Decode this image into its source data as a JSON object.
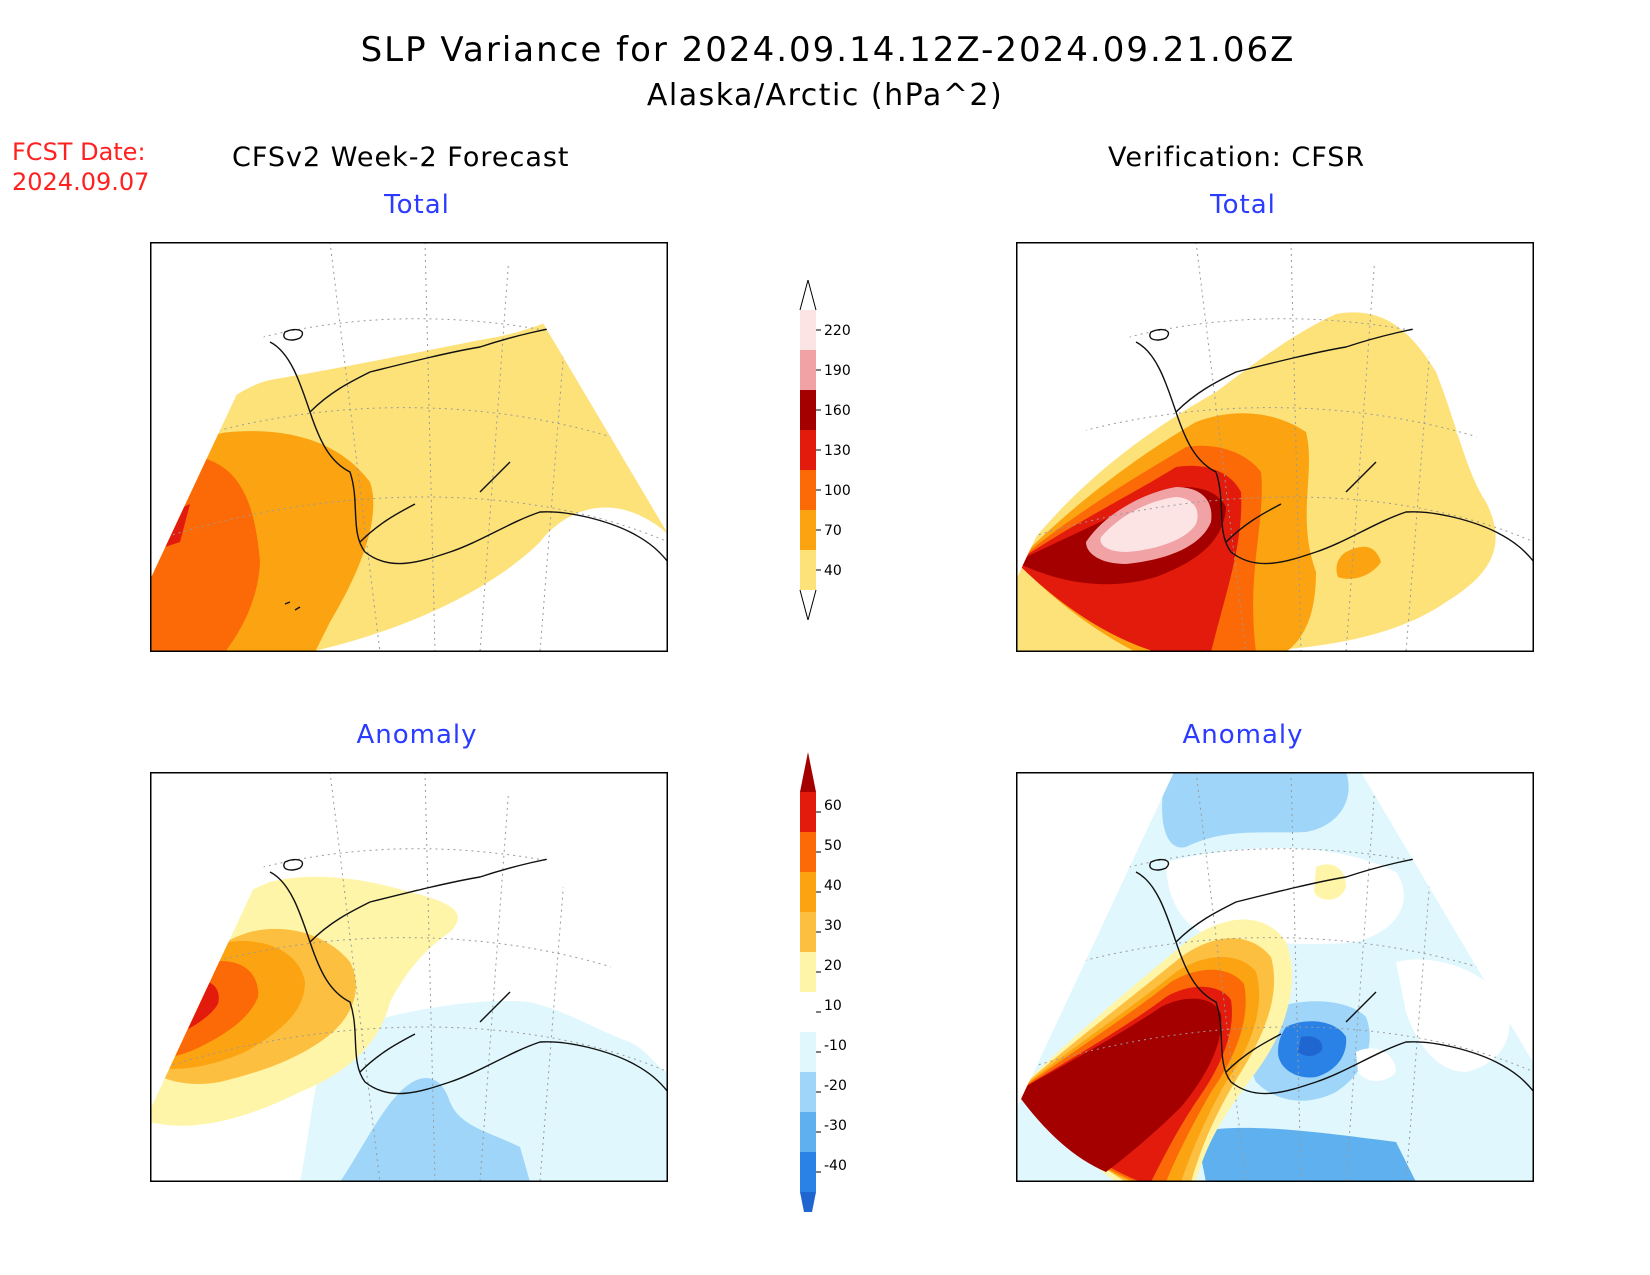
{
  "header": {
    "title": "SLP Variance for 2024.09.14.12Z-2024.09.21.06Z",
    "subtitle": "Alaska/Arctic (hPa^2)"
  },
  "fcst": {
    "label": "FCST Date:",
    "date": "2024.09.07"
  },
  "columns": {
    "left": "CFSv2 Week-2 Forecast",
    "right": "Verification: CFSR"
  },
  "panels": {
    "forecast_total": "Total",
    "verification_total": "Total",
    "forecast_anomaly": "Anomaly",
    "verification_anomaly": "Anomaly"
  },
  "colorbars": {
    "total": {
      "levels": [
        "40",
        "70",
        "100",
        "130",
        "160",
        "190",
        "220"
      ],
      "colors": [
        "#fde27a",
        "#fca311",
        "#fc6a08",
        "#e21b0c",
        "#a50000",
        "#f0a2a4",
        "#fde4e4"
      ]
    },
    "anomaly": {
      "levels": [
        "60",
        "50",
        "40",
        "30",
        "20",
        "10",
        "-10",
        "-20",
        "-30",
        "-40"
      ],
      "colors": [
        "#a50000",
        "#e21b0c",
        "#fc6a08",
        "#fca311",
        "#fdbf3f",
        "#fef5a8",
        "#ffffff",
        "#dff7fd",
        "#9fd5f8",
        "#5fb0ef",
        "#2a82e6",
        "#1f66d0"
      ]
    }
  }
}
